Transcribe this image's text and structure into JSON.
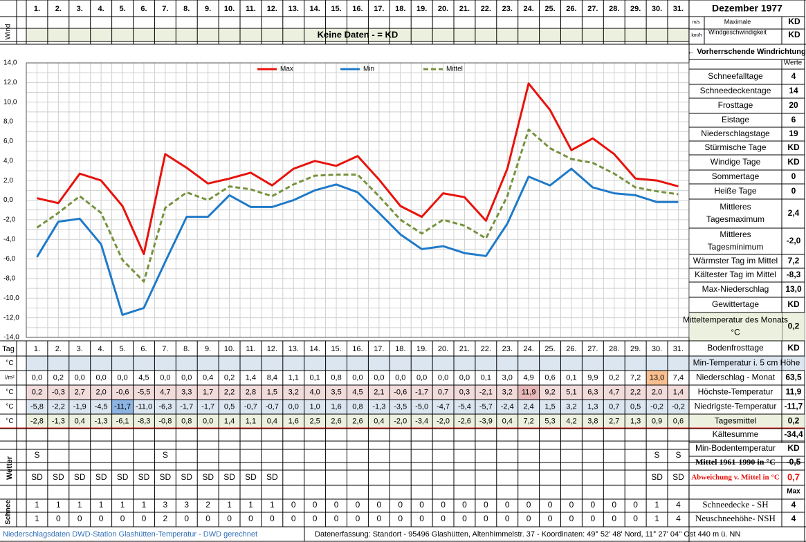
{
  "title": "Dezember 1977",
  "days": [
    "1.",
    "2.",
    "3.",
    "4.",
    "5.",
    "6.",
    "7.",
    "8.",
    "9.",
    "10.",
    "11.",
    "12.",
    "13.",
    "14.",
    "15.",
    "16.",
    "17.",
    "18.",
    "19.",
    "20.",
    "21.",
    "22.",
    "23.",
    "24.",
    "25.",
    "26.",
    "27.",
    "28.",
    "29.",
    "30.",
    "31."
  ],
  "wind": {
    "label": "Wind",
    "unit_ms": "m/s",
    "unit_kmh": "km/h",
    "no_data": "Keine Daten -  = KD",
    "max_label": "Maximale Windgeschwindigkeit",
    "max_ms": "KD",
    "max_kmh": "KD",
    "direction_label": "← Vorherrschende Windrichtung"
  },
  "chart_data": {
    "type": "line",
    "x": [
      "1.",
      "2.",
      "3.",
      "4.",
      "5.",
      "6.",
      "7.",
      "8.",
      "9.",
      "10.",
      "11.",
      "12.",
      "13.",
      "14.",
      "15.",
      "16.",
      "17.",
      "18.",
      "19.",
      "20.",
      "21.",
      "22.",
      "23.",
      "24.",
      "25.",
      "26.",
      "27.",
      "28.",
      "29.",
      "30.",
      "31."
    ],
    "ylim": [
      -14,
      14
    ],
    "yticks": [
      "14,0",
      "12,0",
      "10,0",
      "8,0",
      "6,0",
      "4,0",
      "2,0",
      "0,0",
      "-2,0",
      "-4,0",
      "-6,0",
      "-8,0",
      "-10,0",
      "-12,0",
      "-14,0"
    ],
    "grid": true,
    "legend_position": "top",
    "series": [
      {
        "name": "Max",
        "color": "#e8120c",
        "values": [
          0.2,
          -0.3,
          2.7,
          2.0,
          -0.6,
          -5.5,
          4.7,
          3.3,
          1.7,
          2.2,
          2.8,
          1.5,
          3.2,
          4.0,
          3.5,
          4.5,
          2.1,
          -0.6,
          -1.7,
          0.7,
          0.3,
          -2.1,
          3.2,
          11.9,
          9.2,
          5.1,
          6.3,
          4.7,
          2.2,
          2.0,
          1.4
        ]
      },
      {
        "name": "Min",
        "color": "#1f7ac9",
        "values": [
          -5.8,
          -2.2,
          -1.9,
          -4.5,
          -11.7,
          -11.0,
          -6.3,
          -1.7,
          -1.7,
          0.5,
          -0.7,
          -0.7,
          0.0,
          1.0,
          1.6,
          0.8,
          -1.3,
          -3.5,
          -5.0,
          -4.7,
          -5.4,
          -5.7,
          -2.4,
          2.4,
          1.5,
          3.2,
          1.3,
          0.7,
          0.5,
          -0.2,
          -0.2
        ]
      },
      {
        "name": "Mittel",
        "color": "#76923c",
        "values": [
          -2.8,
          -1.3,
          0.4,
          -1.3,
          -6.1,
          -8.3,
          -0.8,
          0.8,
          0.0,
          1.4,
          1.1,
          0.4,
          1.6,
          2.5,
          2.6,
          2.6,
          0.4,
          -2.0,
          -3.4,
          -2.0,
          -2.6,
          -3.9,
          0.4,
          7.2,
          5.3,
          4.2,
          3.8,
          2.7,
          1.3,
          0.9,
          0.6
        ]
      }
    ]
  },
  "table": {
    "tag_label": "Tag",
    "rows": [
      {
        "unit": "°C",
        "label": "Min-Temperatur i. 5 cm Höhe",
        "total": "",
        "values": [
          "",
          "",
          "",
          "",
          "",
          "",
          "",
          "",
          "",
          "",
          "",
          "",
          "",
          "",
          "",
          "",
          "",
          "",
          "",
          "",
          "",
          "",
          "",
          "",
          "",
          "",
          "",
          "",
          "",
          "",
          ""
        ]
      },
      {
        "unit": "l/m²",
        "label": "Niederschlag - Monat",
        "total": "63,5",
        "values": [
          "0,0",
          "0,2",
          "0,0",
          "0,0",
          "0,0",
          "4,5",
          "0,0",
          "0,0",
          "0,4",
          "0,2",
          "1,4",
          "8,4",
          "1,1",
          "0,1",
          "0,8",
          "0,0",
          "0,0",
          "0,0",
          "0,0",
          "0,0",
          "0,0",
          "0,1",
          "3,0",
          "4,9",
          "0,6",
          "0,1",
          "9,9",
          "0,2",
          "7,2",
          "13,0",
          "7,4"
        ]
      },
      {
        "unit": "°C",
        "label": "Höchste-Temperatur",
        "total": "11,9",
        "values": [
          "0,2",
          "-0,3",
          "2,7",
          "2,0",
          "-0,6",
          "-5,5",
          "4,7",
          "3,3",
          "1,7",
          "2,2",
          "2,8",
          "1,5",
          "3,2",
          "4,0",
          "3,5",
          "4,5",
          "2,1",
          "-0,6",
          "-1,7",
          "0,7",
          "0,3",
          "-2,1",
          "3,2",
          "11,9",
          "9,2",
          "5,1",
          "6,3",
          "4,7",
          "2,2",
          "2,0",
          "1,4"
        ]
      },
      {
        "unit": "°C",
        "label": "Niedrigste-Temperatur",
        "total": "-11,7",
        "values": [
          "-5,8",
          "-2,2",
          "-1,9",
          "-4,5",
          "-11,7",
          "-11,0",
          "-6,3",
          "-1,7",
          "-1,7",
          "0,5",
          "-0,7",
          "-0,7",
          "0,0",
          "1,0",
          "1,6",
          "0,8",
          "-1,3",
          "-3,5",
          "-5,0",
          "-4,7",
          "-5,4",
          "-5,7",
          "-2,4",
          "2,4",
          "1,5",
          "3,2",
          "1,3",
          "0,7",
          "0,5",
          "-0,2",
          "-0,2"
        ]
      },
      {
        "unit": "°C",
        "label": "Tagesmittel",
        "total": "0,2",
        "values": [
          "-2,8",
          "-1,3",
          "0,4",
          "-1,3",
          "-6,1",
          "-8,3",
          "-0,8",
          "0,8",
          "0,0",
          "1,4",
          "1,1",
          "0,4",
          "1,6",
          "2,5",
          "2,6",
          "2,6",
          "0,4",
          "-2,0",
          "-3,4",
          "-2,0",
          "-2,6",
          "-3,9",
          "0,4",
          "7,2",
          "5,3",
          "4,2",
          "3,8",
          "2,7",
          "1,3",
          "0,9",
          "0,6"
        ]
      }
    ],
    "wetter_label": "Wetter",
    "wetter_rows": [
      [
        "S",
        "",
        "",
        "",
        "",
        "",
        "S",
        "",
        "",
        "",
        "",
        "",
        "",
        "",
        "",
        "",
        "",
        "",
        "",
        "",
        "",
        "",
        "",
        "",
        "",
        "",
        "",
        "",
        "",
        "S",
        "S"
      ],
      [
        "SD",
        "SD",
        "SD",
        "SD",
        "SD",
        "SD",
        "SD",
        "SD",
        "SD",
        "SD",
        "SD",
        "SD",
        "",
        "",
        "",
        "",
        "",
        "",
        "",
        "",
        "",
        "",
        "",
        "",
        "",
        "",
        "",
        "",
        "",
        "SD",
        "SD"
      ]
    ],
    "schnee_label": "Schnee",
    "schnee_rows": [
      [
        "1",
        "1",
        "1",
        "1",
        "1",
        "1",
        "3",
        "3",
        "2",
        "1",
        "1",
        "1",
        "0",
        "0",
        "0",
        "0",
        "0",
        "0",
        "0",
        "0",
        "0",
        "0",
        "0",
        "0",
        "0",
        "0",
        "0",
        "0",
        "0",
        "1",
        "4"
      ],
      [
        "1",
        "0",
        "0",
        "0",
        "0",
        "0",
        "2",
        "0",
        "0",
        "0",
        "0",
        "0",
        "0",
        "0",
        "0",
        "0",
        "0",
        "0",
        "0",
        "0",
        "0",
        "0",
        "0",
        "0",
        "0",
        "0",
        "0",
        "0",
        "0",
        "1",
        "4"
      ]
    ]
  },
  "summary": {
    "header": "Werte",
    "rows": [
      {
        "label": "Schneefalltage",
        "value": "4"
      },
      {
        "label": "Schneedeckentage",
        "value": "14"
      },
      {
        "label": "Frosttage",
        "value": "20"
      },
      {
        "label": "Eistage",
        "value": "6"
      },
      {
        "label": "Niederschlagstage",
        "value": "19"
      },
      {
        "label": "Stürmische Tage",
        "value": "KD"
      },
      {
        "label": "Windige Tage",
        "value": "KD"
      },
      {
        "label": "Sommertage",
        "value": "0"
      },
      {
        "label": "Heiße Tage",
        "value": "0"
      },
      {
        "label": "Mittleres Tagesmaximum",
        "value": "2,4"
      },
      {
        "label": "Mittleres Tagesminimum",
        "value": "-2,0"
      },
      {
        "label": "Wärmster Tag im Mittel",
        "value": "7,2"
      },
      {
        "label": "Kältester Tag im Mittel",
        "value": "-8,3"
      },
      {
        "label": "Max-Niederschlag",
        "value": "13,0"
      },
      {
        "label": "Gewittertage",
        "value": "KD"
      },
      {
        "label": "Mitteltemperatur des Monats °C",
        "value": "0,2"
      },
      {
        "label": "Bodenfrosttage",
        "value": "KD"
      }
    ],
    "lower": [
      {
        "label": "Kältesumme",
        "value": "-34,4"
      },
      {
        "label": "Min-Bodentemperatur",
        "value": "KD"
      },
      {
        "label": "Mittel 1961-1990 in °C",
        "value": "-0,5"
      },
      {
        "label": "Abweichung v. Mittel in °C",
        "value": "0,7"
      },
      {
        "label": "",
        "value": "Max"
      },
      {
        "label": "Schneedecke -  SH",
        "value": "4"
      },
      {
        "label": "Neuschneehöhe- NSH",
        "value": "4"
      }
    ]
  },
  "footer": {
    "left": "Niederschlagsdaten DWD-Station Glashütten-Temperatur -  DWD gerechnet",
    "right": "Datenerfassung:  Standort -  95496  Glashütten, Altenhimmelstr. 37 - Koordinaten:  49° 52' 48' Nord,  11° 27' 04'' Ost  440 m ü. NN"
  }
}
